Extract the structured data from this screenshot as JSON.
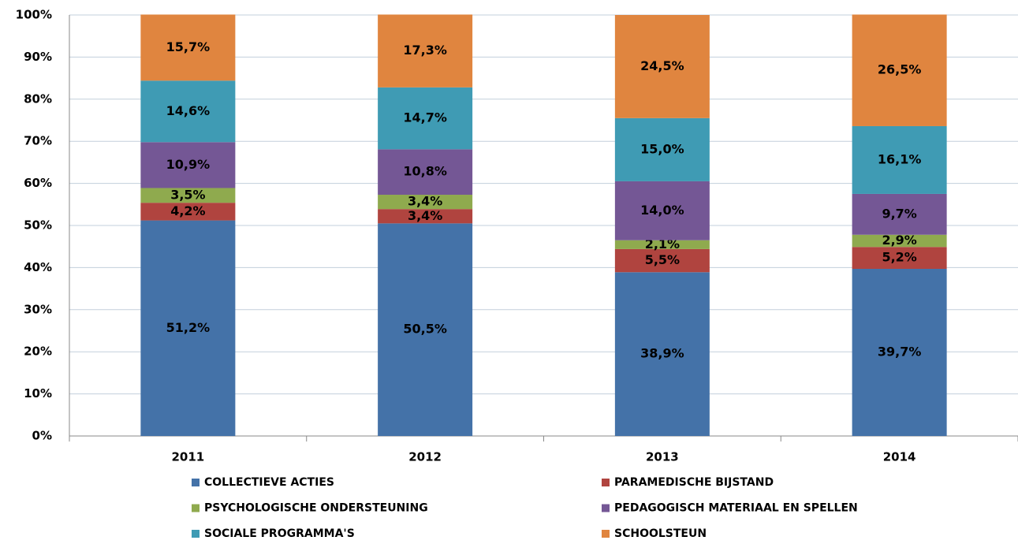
{
  "chart_data": {
    "type": "stacked_bar",
    "categories": [
      "2011",
      "2012",
      "2013",
      "2014"
    ],
    "series": [
      {
        "name": "COLLECTIEVE ACTIES",
        "color": "#4472a8",
        "values": [
          51.2,
          50.5,
          38.9,
          39.7
        ],
        "value_labels": [
          "51,2%",
          "50,5%",
          "38,9%",
          "39,7%"
        ]
      },
      {
        "name": "PARAMEDISCHE BIJSTAND",
        "color": "#b0443f",
        "values": [
          4.2,
          3.4,
          5.5,
          5.2
        ],
        "value_labels": [
          "4,2%",
          "3,4%",
          "5,5%",
          "5,2%"
        ]
      },
      {
        "name": "PSYCHOLOGISCHE ONDERSTEUNING",
        "color": "#8faa4e",
        "values": [
          3.5,
          3.4,
          2.1,
          2.9
        ],
        "value_labels": [
          "3,5%",
          "3,4%",
          "2,1%",
          "2,9%"
        ]
      },
      {
        "name": "PEDAGOGISCH MATERIAAL EN SPELLEN",
        "color": "#745795",
        "values": [
          10.9,
          10.8,
          14.0,
          9.7
        ],
        "value_labels": [
          "10,9%",
          "10,8%",
          "14,0%",
          "9,7%"
        ]
      },
      {
        "name": "SOCIALE PROGRAMMA'S",
        "color": "#3f9bb4",
        "values": [
          14.6,
          14.7,
          15.0,
          16.1
        ],
        "value_labels": [
          "14,6%",
          "14,7%",
          "15,0%",
          "16,1%"
        ]
      },
      {
        "name": "SCHOOLSTEUN",
        "color": "#e0853f",
        "values": [
          15.7,
          17.3,
          24.5,
          26.5
        ],
        "value_labels": [
          "15,7%",
          "17,3%",
          "24,5%",
          "26,5%"
        ]
      }
    ],
    "ylim": [
      0,
      100
    ],
    "yticks": [
      {
        "value": 0,
        "label": "0%"
      },
      {
        "value": 10,
        "label": "10%"
      },
      {
        "value": 20,
        "label": "20%"
      },
      {
        "value": 30,
        "label": "30%"
      },
      {
        "value": 40,
        "label": "40%"
      },
      {
        "value": 50,
        "label": "50%"
      },
      {
        "value": 60,
        "label": "60%"
      },
      {
        "value": 70,
        "label": "70%"
      },
      {
        "value": 80,
        "label": "80%"
      },
      {
        "value": 90,
        "label": "90%"
      },
      {
        "value": 100,
        "label": "100%"
      }
    ],
    "grid": true
  }
}
